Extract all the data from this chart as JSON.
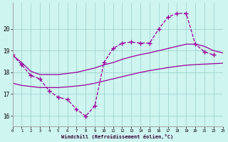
{
  "xlabel": "Windchill (Refroidissement éolien,°C)",
  "xlim": [
    0,
    23
  ],
  "ylim": [
    15.5,
    21.2
  ],
  "yticks": [
    16,
    17,
    18,
    19,
    20
  ],
  "xticks": [
    0,
    1,
    2,
    3,
    4,
    5,
    6,
    7,
    8,
    9,
    10,
    11,
    12,
    13,
    14,
    15,
    16,
    17,
    18,
    19,
    20,
    21,
    22,
    23
  ],
  "bg_color": "#cef5f0",
  "line_color": "#990099",
  "grid_color": "#99cccc",
  "dashed_x": [
    0,
    1,
    2,
    3,
    4,
    5,
    6,
    7,
    8,
    9,
    10,
    11,
    12,
    13,
    14,
    15,
    16,
    17,
    18,
    19,
    20,
    21,
    22
  ],
  "dashed_y": [
    18.8,
    18.35,
    17.85,
    17.7,
    17.15,
    16.85,
    16.75,
    16.3,
    15.98,
    16.45,
    18.45,
    19.1,
    19.35,
    19.4,
    19.35,
    19.35,
    20.0,
    20.55,
    20.72,
    20.72,
    19.3,
    18.95,
    18.8
  ],
  "smooth_upper_x": [
    0,
    1,
    2,
    3,
    4,
    5,
    6,
    7,
    8,
    9,
    10,
    11,
    12,
    13,
    14,
    15,
    16,
    17,
    18,
    19,
    20,
    21,
    22,
    23
  ],
  "smooth_upper_y": [
    18.8,
    18.45,
    18.05,
    17.9,
    17.9,
    17.9,
    17.95,
    18.0,
    18.1,
    18.2,
    18.35,
    18.45,
    18.6,
    18.72,
    18.82,
    18.9,
    19.0,
    19.1,
    19.2,
    19.3,
    19.3,
    19.2,
    19.0,
    18.9
  ],
  "smooth_lower_x": [
    0,
    1,
    2,
    3,
    4,
    5,
    6,
    7,
    8,
    9,
    10,
    11,
    12,
    13,
    14,
    15,
    16,
    17,
    18,
    19,
    20,
    21,
    22,
    23
  ],
  "smooth_lower_y": [
    17.5,
    17.4,
    17.35,
    17.3,
    17.3,
    17.3,
    17.33,
    17.37,
    17.42,
    17.5,
    17.6,
    17.7,
    17.8,
    17.9,
    18.0,
    18.08,
    18.15,
    18.22,
    18.28,
    18.33,
    18.36,
    18.38,
    18.4,
    18.42
  ]
}
